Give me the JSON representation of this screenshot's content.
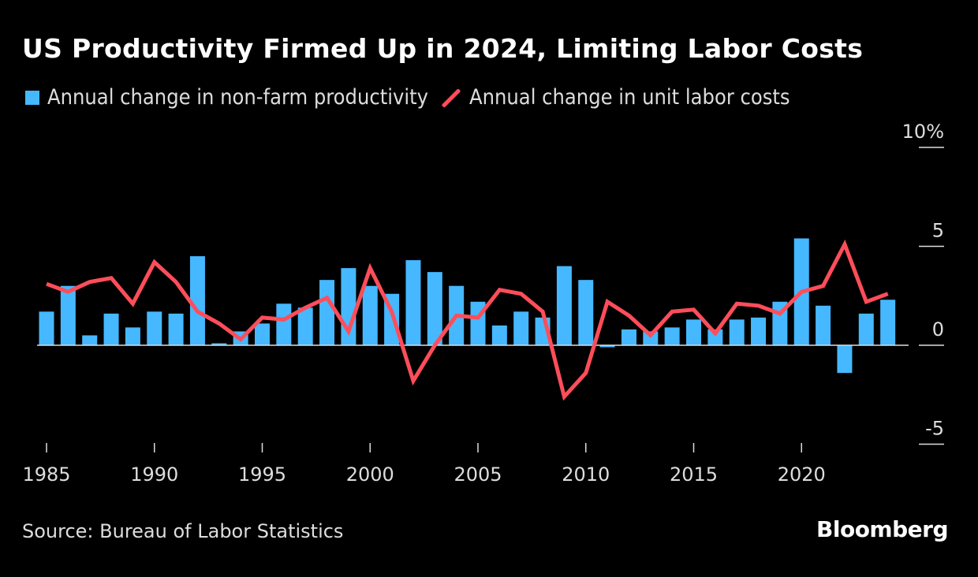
{
  "title": "US Productivity Firmed Up in 2024, Limiting Labor Costs",
  "legend": {
    "bar_label": "Annual change in non-farm productivity",
    "line_label": "Annual change in unit labor costs"
  },
  "source": "Source: Bureau of Labor Statistics",
  "logo": "Bloomberg",
  "colors": {
    "bar": "#46b8ff",
    "line": "#ff4d5a",
    "background": "#000000",
    "axis": "#dddddd"
  },
  "chart_data": {
    "type": "bar+line",
    "title": "US Productivity Firmed Up in 2024, Limiting Labor Costs",
    "x": [
      1985,
      1986,
      1987,
      1988,
      1989,
      1990,
      1991,
      1992,
      1993,
      1994,
      1995,
      1996,
      1997,
      1998,
      1999,
      2000,
      2001,
      2002,
      2003,
      2004,
      2005,
      2006,
      2007,
      2008,
      2009,
      2010,
      2011,
      2012,
      2013,
      2014,
      2015,
      2016,
      2017,
      2018,
      2019,
      2020,
      2021,
      2022,
      2023,
      2024
    ],
    "x_ticks": [
      "1985",
      "1990",
      "1995",
      "2000",
      "2005",
      "2010",
      "2015",
      "2020"
    ],
    "y_ticks": [
      "10%",
      "5",
      "0",
      "-5"
    ],
    "y_tick_values": [
      10,
      5,
      0,
      -5
    ],
    "ylim": [
      -5,
      10
    ],
    "y_axis_side": "right",
    "grid": false,
    "legend_placement": "top-left",
    "series": [
      {
        "name": "Annual change in non-farm productivity",
        "type": "bar",
        "values": [
          1.7,
          3.0,
          0.5,
          1.6,
          0.9,
          1.7,
          1.6,
          4.5,
          0.1,
          0.7,
          1.1,
          2.1,
          1.9,
          3.3,
          3.9,
          3.0,
          2.6,
          4.3,
          3.7,
          3.0,
          2.2,
          1.0,
          1.7,
          1.4,
          4.0,
          3.3,
          -0.1,
          0.8,
          0.7,
          0.9,
          1.3,
          0.8,
          1.3,
          1.4,
          2.2,
          5.4,
          2.0,
          -1.4,
          1.6,
          2.3
        ]
      },
      {
        "name": "Annual change in unit labor costs",
        "type": "line",
        "values": [
          3.1,
          2.7,
          3.2,
          3.4,
          2.1,
          4.2,
          3.2,
          1.7,
          1.1,
          0.3,
          1.4,
          1.3,
          1.9,
          2.4,
          0.7,
          3.9,
          1.7,
          -1.8,
          0.0,
          1.5,
          1.4,
          2.8,
          2.6,
          1.7,
          -2.6,
          -1.4,
          2.2,
          1.5,
          0.5,
          1.7,
          1.8,
          0.6,
          2.1,
          2.0,
          1.6,
          2.7,
          3.0,
          5.1,
          2.2,
          2.6
        ]
      }
    ]
  }
}
